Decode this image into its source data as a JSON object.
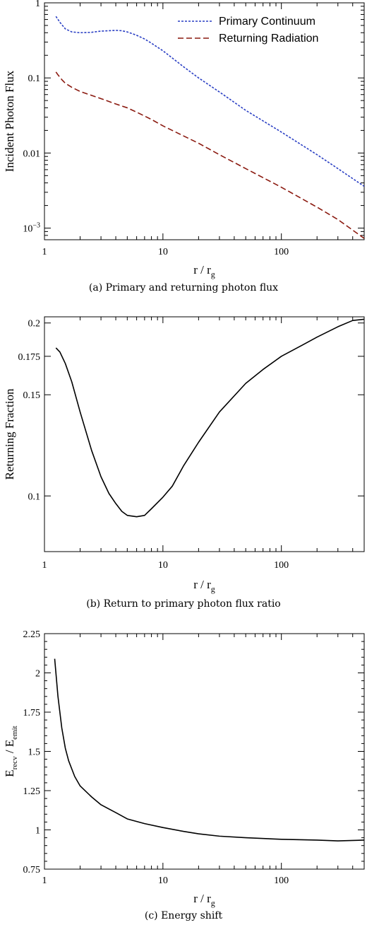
{
  "chart_data": [
    {
      "type": "line",
      "panel": "a",
      "caption": "(a) Primary and returning photon flux",
      "xlabel": "r / r",
      "xlabel_sub": "g",
      "ylabel": "Incident Photon Flux",
      "xscale": "log",
      "yscale": "log",
      "xlim": [
        1,
        500
      ],
      "ylim": [
        0.0007,
        1
      ],
      "xticks": [
        {
          "v": 1,
          "label": "1"
        },
        {
          "v": 10,
          "label": "10"
        },
        {
          "v": 100,
          "label": "100"
        }
      ],
      "yticks": [
        {
          "v": 1,
          "label": "1"
        },
        {
          "v": 0.1,
          "label": "0.1"
        },
        {
          "v": 0.01,
          "label": "0.01"
        },
        {
          "v": 0.001,
          "label": "10",
          "sup": "−3"
        }
      ],
      "legend_position": "top-right",
      "series": [
        {
          "name": "Primary Continuum",
          "color": "#2a3fc4",
          "dash": "3,2",
          "points": [
            [
              1.25,
              0.66
            ],
            [
              1.35,
              0.55
            ],
            [
              1.5,
              0.45
            ],
            [
              1.7,
              0.41
            ],
            [
              2,
              0.4
            ],
            [
              2.5,
              0.405
            ],
            [
              3,
              0.42
            ],
            [
              3.5,
              0.425
            ],
            [
              4,
              0.43
            ],
            [
              4.5,
              0.425
            ],
            [
              5,
              0.41
            ],
            [
              6,
              0.37
            ],
            [
              7,
              0.33
            ],
            [
              8,
              0.29
            ],
            [
              10,
              0.23
            ],
            [
              15,
              0.14
            ],
            [
              20,
              0.1
            ],
            [
              30,
              0.065
            ],
            [
              50,
              0.037
            ],
            [
              100,
              0.019
            ],
            [
              200,
              0.0095
            ],
            [
              300,
              0.0062
            ],
            [
              500,
              0.0036
            ]
          ]
        },
        {
          "name": "Returning Radiation",
          "color": "#8b1a10",
          "dash": "8,4",
          "points": [
            [
              1.25,
              0.12
            ],
            [
              1.3,
              0.11
            ],
            [
              1.4,
              0.095
            ],
            [
              1.5,
              0.085
            ],
            [
              1.7,
              0.075
            ],
            [
              2,
              0.066
            ],
            [
              3,
              0.053
            ],
            [
              4,
              0.045
            ],
            [
              5,
              0.04
            ],
            [
              6,
              0.035
            ],
            [
              8,
              0.028
            ],
            [
              10,
              0.023
            ],
            [
              20,
              0.0135
            ],
            [
              30,
              0.0095
            ],
            [
              50,
              0.0062
            ],
            [
              100,
              0.0035
            ],
            [
              200,
              0.0019
            ],
            [
              300,
              0.0013
            ],
            [
              500,
              0.00073
            ]
          ]
        }
      ]
    },
    {
      "type": "line",
      "panel": "b",
      "caption": "(b) Return to primary photon flux ratio",
      "xlabel": "r / r",
      "xlabel_sub": "g",
      "ylabel": "Returning Fraction",
      "xscale": "log",
      "yscale": "log",
      "xlim": [
        1,
        500
      ],
      "ylim": [
        0.08,
        0.205
      ],
      "xticks": [
        {
          "v": 1,
          "label": "1"
        },
        {
          "v": 10,
          "label": "10"
        },
        {
          "v": 100,
          "label": "100"
        }
      ],
      "yticks": [
        {
          "v": 0.2,
          "label": "0.2"
        },
        {
          "v": 0.175,
          "label": "0.175"
        },
        {
          "v": 0.15,
          "label": "0.15"
        },
        {
          "v": 0.1,
          "label": "0.1"
        }
      ],
      "series": [
        {
          "color": "#000000",
          "dash": "",
          "points": [
            [
              1.25,
              0.181
            ],
            [
              1.35,
              0.178
            ],
            [
              1.5,
              0.17
            ],
            [
              1.7,
              0.158
            ],
            [
              2,
              0.14
            ],
            [
              2.5,
              0.12
            ],
            [
              3,
              0.108
            ],
            [
              3.5,
              0.101
            ],
            [
              4,
              0.097
            ],
            [
              4.5,
              0.094
            ],
            [
              5,
              0.0925
            ],
            [
              6,
              0.092
            ],
            [
              7,
              0.0925
            ],
            [
              8,
              0.095
            ],
            [
              10,
              0.0995
            ],
            [
              12,
              0.104
            ],
            [
              15,
              0.113
            ],
            [
              20,
              0.124
            ],
            [
              30,
              0.14
            ],
            [
              50,
              0.157
            ],
            [
              70,
              0.166
            ],
            [
              100,
              0.175
            ],
            [
              150,
              0.183
            ],
            [
              200,
              0.189
            ],
            [
              300,
              0.197
            ],
            [
              400,
              0.202
            ],
            [
              500,
              0.203
            ]
          ]
        }
      ]
    },
    {
      "type": "line",
      "panel": "c",
      "caption": "(c) Energy shift",
      "xlabel": "r / r",
      "xlabel_sub": "g",
      "ylabel_parts": [
        {
          "t": "E"
        },
        {
          "t": "recv",
          "sub": true
        },
        {
          "t": " / E"
        },
        {
          "t": "emit",
          "sub": true
        }
      ],
      "xscale": "log",
      "yscale": "linear",
      "xlim": [
        1,
        500
      ],
      "ylim": [
        0.75,
        2.25
      ],
      "xticks": [
        {
          "v": 1,
          "label": "1"
        },
        {
          "v": 10,
          "label": "10"
        },
        {
          "v": 100,
          "label": "100"
        }
      ],
      "yticks": [
        {
          "v": 2.25,
          "label": "2.25"
        },
        {
          "v": 2,
          "label": "2"
        },
        {
          "v": 1.75,
          "label": "1.75"
        },
        {
          "v": 1.5,
          "label": "1.5"
        },
        {
          "v": 1.25,
          "label": "1.25"
        },
        {
          "v": 1,
          "label": "1"
        },
        {
          "v": 0.75,
          "label": "0.75"
        }
      ],
      "series": [
        {
          "color": "#000000",
          "dash": "",
          "points": [
            [
              1.22,
              2.09
            ],
            [
              1.3,
              1.85
            ],
            [
              1.4,
              1.65
            ],
            [
              1.5,
              1.52
            ],
            [
              1.6,
              1.44
            ],
            [
              1.8,
              1.34
            ],
            [
              2,
              1.28
            ],
            [
              2.5,
              1.21
            ],
            [
              3,
              1.16
            ],
            [
              4,
              1.11
            ],
            [
              5,
              1.07
            ],
            [
              7,
              1.04
            ],
            [
              10,
              1.015
            ],
            [
              15,
              0.99
            ],
            [
              20,
              0.975
            ],
            [
              30,
              0.96
            ],
            [
              50,
              0.95
            ],
            [
              100,
              0.94
            ],
            [
              200,
              0.935
            ],
            [
              300,
              0.93
            ],
            [
              500,
              0.935
            ]
          ]
        }
      ]
    }
  ]
}
